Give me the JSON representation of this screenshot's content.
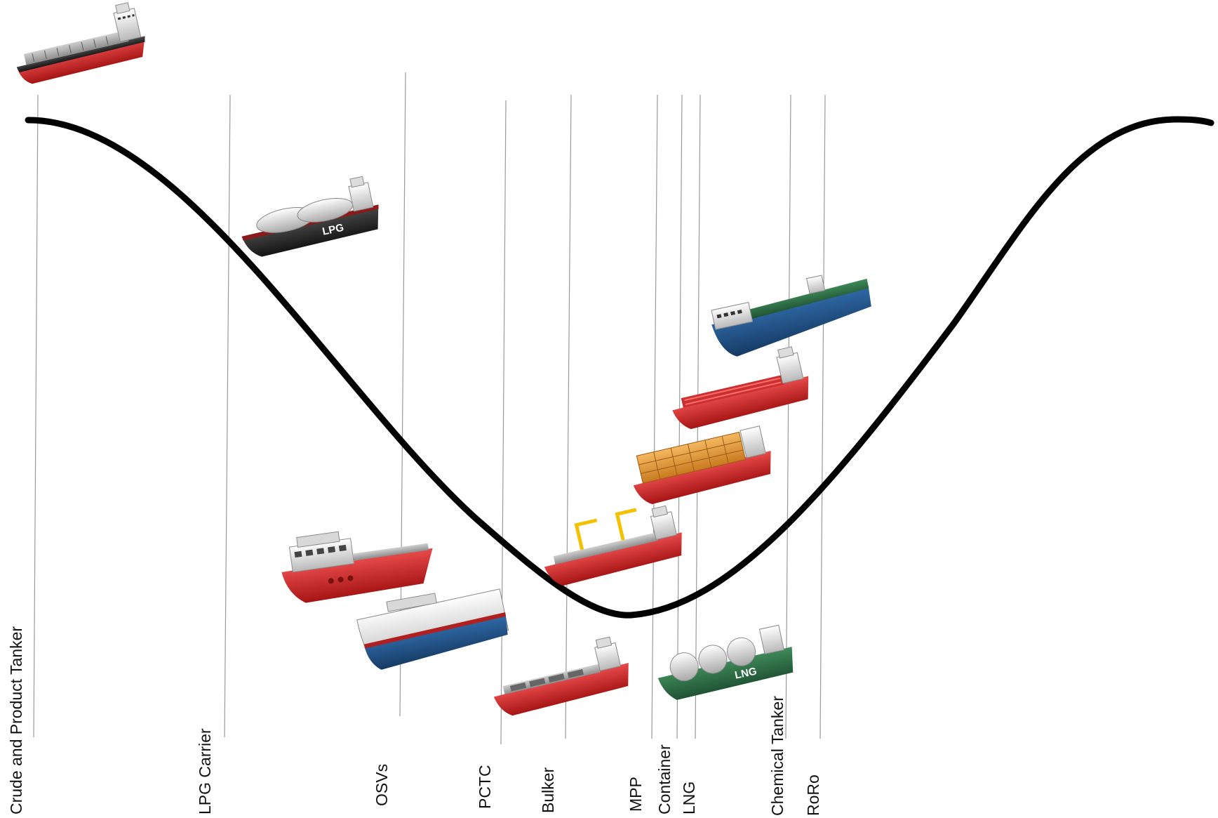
{
  "colors": {
    "curve": "#000000",
    "guide_line": "#9a9a9a",
    "label": "#111111",
    "hull_red": "#d42a2a",
    "hull_black": "#2b2b2b",
    "hull_navy": "#1f4f82",
    "hull_green": "#2f6e45",
    "superstructure": "#e4e4e4",
    "container_orange": "#e39a3a",
    "crane_yellow": "#f2c200"
  },
  "curve_shape": "inverted-bell cycle",
  "ship_types": [
    {
      "id": "crude",
      "label": "Crude and Product Tanker",
      "icon": "tanker-ship-icon",
      "hull": "red"
    },
    {
      "id": "lpg",
      "label": "LPG Carrier",
      "icon": "lpg-carrier-icon",
      "hull": "black",
      "hull_text": "LPG"
    },
    {
      "id": "osv",
      "label": "OSVs",
      "icon": "offshore-supply-vessel-icon",
      "hull": "red"
    },
    {
      "id": "pctc",
      "label": "PCTC",
      "icon": "car-carrier-icon",
      "hull": "navy"
    },
    {
      "id": "bulker",
      "label": "Bulker",
      "icon": "bulk-carrier-icon",
      "hull": "red"
    },
    {
      "id": "mpp",
      "label": "MPP",
      "icon": "multipurpose-ship-icon",
      "hull": "red"
    },
    {
      "id": "container",
      "label": "Container",
      "icon": "container-ship-icon",
      "hull": "red"
    },
    {
      "id": "lng",
      "label": "LNG",
      "icon": "lng-carrier-icon",
      "hull": "green",
      "hull_text": "LNG"
    },
    {
      "id": "chemical",
      "label": "Chemical Tanker",
      "icon": "chemical-tanker-icon",
      "hull": "red"
    },
    {
      "id": "roro",
      "label": "RoRo",
      "icon": "roro-ship-icon",
      "hull": "navy"
    }
  ]
}
